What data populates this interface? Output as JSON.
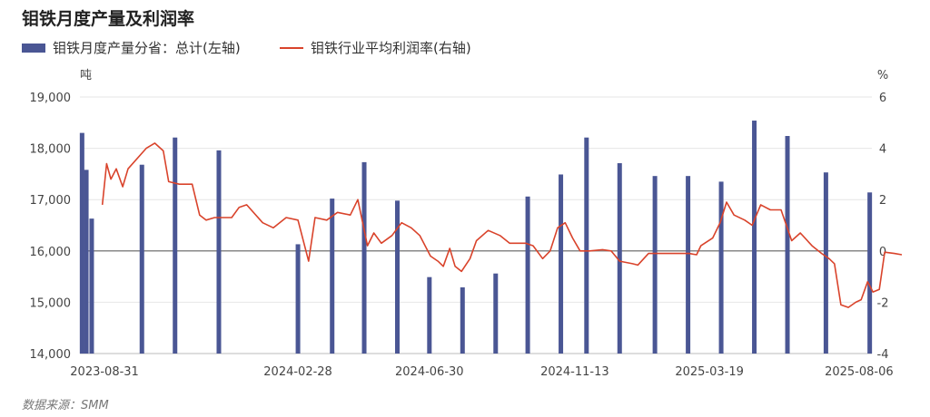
{
  "title": "钼铁月度产量及利润率",
  "legend": {
    "bar_label": "钼铁月度产量分省：总计(左轴)",
    "line_label": "钼铁行业平均利润率(右轴)"
  },
  "footer": "数据来源：SMM",
  "colors": {
    "bar": "#4a5694",
    "line": "#d9432b",
    "grid": "#e6e6e6",
    "zero_line": "#888888"
  },
  "chart_data": {
    "type": "bar",
    "title": "钼铁月度产量及利润率",
    "y_left": {
      "unit": "吨",
      "ylim": [
        14000,
        19000
      ],
      "ticks": [
        "14,000",
        "15,000",
        "16,000",
        "17,000",
        "18,000",
        "19,000"
      ]
    },
    "y_right": {
      "unit": "%",
      "ylim": [
        -4,
        6
      ],
      "ticks": [
        "-4",
        "-2",
        "0",
        "2",
        "4",
        "6"
      ]
    },
    "x_tick_labels": [
      "2023-08-31",
      "2024-02-28",
      "2024-06-30",
      "2024-11-13",
      "2025-03-19",
      "2025-08-06"
    ],
    "x_range": [
      "2023-08-08",
      "2025-08-18"
    ],
    "grid": true,
    "legend_position": "top-left",
    "series": [
      {
        "name": "钼铁月度产量分省：总计(左轴)",
        "type": "bar",
        "axis": "left",
        "points": [
          {
            "date": "2023-08-10",
            "value": 18300
          },
          {
            "date": "2023-08-14",
            "value": 17580
          },
          {
            "date": "2023-08-19",
            "value": 16630
          },
          {
            "date": "2023-10-05",
            "value": 17680
          },
          {
            "date": "2023-11-05",
            "value": 18210
          },
          {
            "date": "2023-12-16",
            "value": 17960
          },
          {
            "date": "2024-02-28",
            "value": 16130
          },
          {
            "date": "2024-03-31",
            "value": 17020
          },
          {
            "date": "2024-04-30",
            "value": 17730
          },
          {
            "date": "2024-05-31",
            "value": 16980
          },
          {
            "date": "2024-06-30",
            "value": 15490
          },
          {
            "date": "2024-07-31",
            "value": 15290
          },
          {
            "date": "2024-08-31",
            "value": 15560
          },
          {
            "date": "2024-09-30",
            "value": 17060
          },
          {
            "date": "2024-10-31",
            "value": 17490
          },
          {
            "date": "2024-11-24",
            "value": 18210
          },
          {
            "date": "2024-12-25",
            "value": 17710
          },
          {
            "date": "2025-01-27",
            "value": 17460
          },
          {
            "date": "2025-02-27",
            "value": 17460
          },
          {
            "date": "2025-03-30",
            "value": 17350
          },
          {
            "date": "2025-04-30",
            "value": 18540
          },
          {
            "date": "2025-05-31",
            "value": 18240
          },
          {
            "date": "2025-07-06",
            "value": 17530
          },
          {
            "date": "2025-08-16",
            "value": 17140
          }
        ]
      },
      {
        "name": "钼铁行业平均利润率(右轴)",
        "type": "line",
        "axis": "right",
        "points": [
          {
            "date": "2023-08-29",
            "value": 1.8
          },
          {
            "date": "2023-09-02",
            "value": 3.4
          },
          {
            "date": "2023-09-06",
            "value": 2.8
          },
          {
            "date": "2023-09-11",
            "value": 3.2
          },
          {
            "date": "2023-09-17",
            "value": 2.5
          },
          {
            "date": "2023-09-22",
            "value": 3.2
          },
          {
            "date": "2023-10-09",
            "value": 4.0
          },
          {
            "date": "2023-10-17",
            "value": 4.2
          },
          {
            "date": "2023-10-25",
            "value": 3.9
          },
          {
            "date": "2023-10-30",
            "value": 2.7
          },
          {
            "date": "2023-11-09",
            "value": 2.6
          },
          {
            "date": "2023-11-21",
            "value": 2.6
          },
          {
            "date": "2023-11-28",
            "value": 1.4
          },
          {
            "date": "2023-12-04",
            "value": 1.2
          },
          {
            "date": "2023-12-12",
            "value": 1.3
          },
          {
            "date": "2023-12-28",
            "value": 1.3
          },
          {
            "date": "2024-01-04",
            "value": 1.7
          },
          {
            "date": "2024-01-11",
            "value": 1.8
          },
          {
            "date": "2024-01-26",
            "value": 1.1
          },
          {
            "date": "2024-02-05",
            "value": 0.9
          },
          {
            "date": "2024-02-17",
            "value": 1.3
          },
          {
            "date": "2024-02-28",
            "value": 1.2
          },
          {
            "date": "2024-03-09",
            "value": -0.4
          },
          {
            "date": "2024-03-15",
            "value": 1.3
          },
          {
            "date": "2024-03-26",
            "value": 1.2
          },
          {
            "date": "2024-04-05",
            "value": 1.5
          },
          {
            "date": "2024-04-17",
            "value": 1.4
          },
          {
            "date": "2024-04-24",
            "value": 2.0
          },
          {
            "date": "2024-05-03",
            "value": 0.2
          },
          {
            "date": "2024-05-09",
            "value": 0.7
          },
          {
            "date": "2024-05-16",
            "value": 0.3
          },
          {
            "date": "2024-05-26",
            "value": 0.6
          },
          {
            "date": "2024-06-04",
            "value": 1.1
          },
          {
            "date": "2024-06-13",
            "value": 0.9
          },
          {
            "date": "2024-06-21",
            "value": 0.6
          },
          {
            "date": "2024-07-01",
            "value": -0.2
          },
          {
            "date": "2024-07-08",
            "value": -0.4
          },
          {
            "date": "2024-07-13",
            "value": -0.6
          },
          {
            "date": "2024-07-19",
            "value": 0.1
          },
          {
            "date": "2024-07-24",
            "value": -0.6
          },
          {
            "date": "2024-07-30",
            "value": -0.8
          },
          {
            "date": "2024-08-07",
            "value": -0.3
          },
          {
            "date": "2024-08-13",
            "value": 0.4
          },
          {
            "date": "2024-08-24",
            "value": 0.8
          },
          {
            "date": "2024-09-04",
            "value": 0.6
          },
          {
            "date": "2024-09-13",
            "value": 0.3
          },
          {
            "date": "2024-09-28",
            "value": 0.3
          },
          {
            "date": "2024-10-05",
            "value": 0.2
          },
          {
            "date": "2024-10-14",
            "value": -0.3
          },
          {
            "date": "2024-10-21",
            "value": 0.0
          },
          {
            "date": "2024-10-28",
            "value": 0.9
          },
          {
            "date": "2024-11-04",
            "value": 1.1
          },
          {
            "date": "2024-11-11",
            "value": 0.5
          },
          {
            "date": "2024-11-18",
            "value": 0.0
          },
          {
            "date": "2024-11-27",
            "value": 0.0
          },
          {
            "date": "2024-12-09",
            "value": 0.05
          },
          {
            "date": "2024-12-17",
            "value": 0.0
          },
          {
            "date": "2024-12-25",
            "value": -0.4
          },
          {
            "date": "2025-01-06",
            "value": -0.5
          },
          {
            "date": "2025-01-11",
            "value": -0.55
          },
          {
            "date": "2025-01-21",
            "value": -0.1
          },
          {
            "date": "2025-02-05",
            "value": -0.1
          },
          {
            "date": "2025-02-28",
            "value": -0.1
          },
          {
            "date": "2025-03-07",
            "value": -0.15
          },
          {
            "date": "2025-03-11",
            "value": 0.2
          },
          {
            "date": "2025-03-22",
            "value": 0.5
          },
          {
            "date": "2025-03-29",
            "value": 1.1
          },
          {
            "date": "2025-04-04",
            "value": 1.9
          },
          {
            "date": "2025-04-11",
            "value": 1.4
          },
          {
            "date": "2025-04-21",
            "value": 1.2
          },
          {
            "date": "2025-04-28",
            "value": 1.0
          },
          {
            "date": "2025-05-06",
            "value": 1.8
          },
          {
            "date": "2025-05-15",
            "value": 1.6
          },
          {
            "date": "2025-05-25",
            "value": 1.6
          },
          {
            "date": "2025-06-04",
            "value": 0.4
          },
          {
            "date": "2025-06-12",
            "value": 0.7
          },
          {
            "date": "2025-06-23",
            "value": 0.2
          },
          {
            "date": "2025-07-02",
            "value": -0.1
          },
          {
            "date": "2025-07-09",
            "value": -0.3
          },
          {
            "date": "2025-07-14",
            "value": -0.5
          },
          {
            "date": "2025-07-20",
            "value": -2.1
          },
          {
            "date": "2025-07-27",
            "value": -2.2
          },
          {
            "date": "2025-08-03",
            "value": -2.0
          },
          {
            "date": "2025-08-08",
            "value": -1.9
          },
          {
            "date": "2025-08-14",
            "value": -1.2
          },
          {
            "date": "2025-08-19",
            "value": -1.6
          },
          {
            "date": "2025-08-25",
            "value": -1.5
          },
          {
            "date": "2025-08-30",
            "value": -0.05
          },
          {
            "date": "2025-09-08",
            "value": -0.1
          },
          {
            "date": "2025-09-15",
            "value": -0.15
          }
        ]
      }
    ]
  }
}
